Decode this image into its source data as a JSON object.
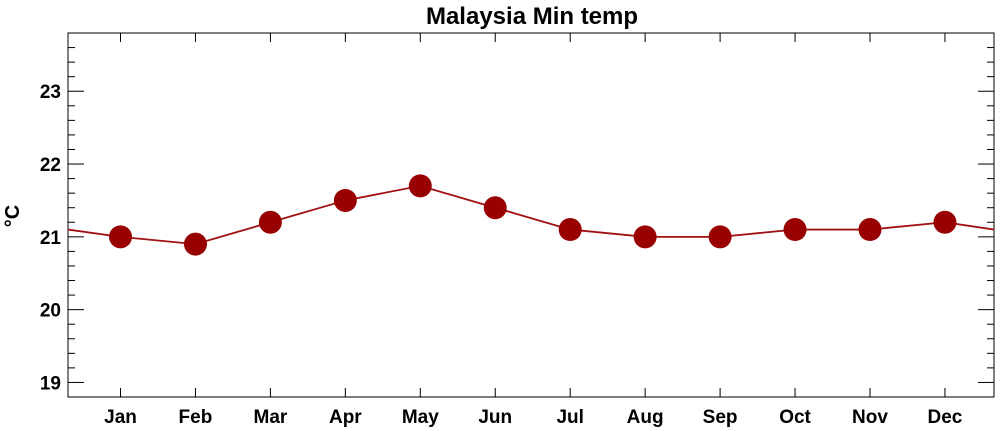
{
  "chart_data": {
    "type": "line",
    "title": "Malaysia Min temp",
    "ylabel": "°C",
    "xlabel": "",
    "categories": [
      "Jan",
      "Feb",
      "Mar",
      "Apr",
      "May",
      "Jun",
      "Jul",
      "Aug",
      "Sep",
      "Oct",
      "Nov",
      "Dec"
    ],
    "series": [
      {
        "values": [
          21.0,
          20.9,
          21.2,
          21.5,
          21.7,
          21.4,
          21.1,
          21.0,
          21.0,
          21.1,
          21.1,
          21.2
        ]
      }
    ],
    "ylim": [
      18.8,
      23.8
    ],
    "yticks": [
      19,
      20,
      21,
      22,
      23
    ],
    "grid": false,
    "colors": {
      "line": "#a01010",
      "marker": "#990000",
      "axis": "#000000"
    },
    "wrap_line": true
  }
}
